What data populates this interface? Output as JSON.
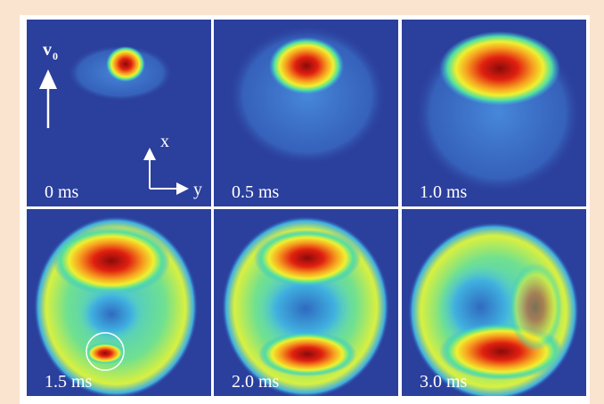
{
  "panels": [
    {
      "label": "0 ms"
    },
    {
      "label": "0.5 ms"
    },
    {
      "label": "1.0 ms"
    },
    {
      "label": "1.5 ms"
    },
    {
      "label": "2.0 ms"
    },
    {
      "label": "3.0 ms"
    }
  ],
  "annotations": {
    "velocity": "v",
    "velocity_subscript": "0",
    "axis_x": "x",
    "axis_y": "y"
  }
}
